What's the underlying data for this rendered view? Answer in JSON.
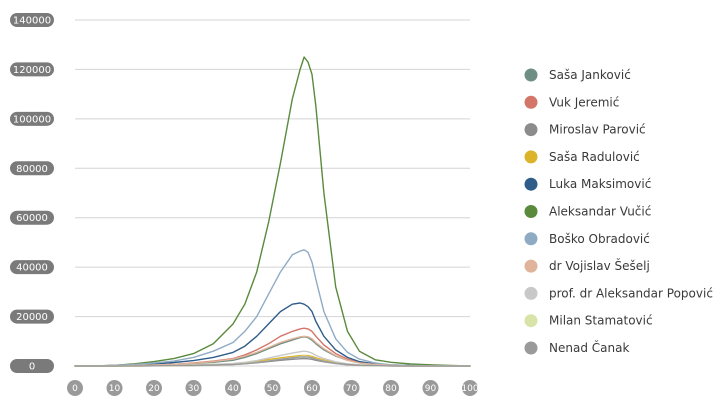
{
  "chart_data": {
    "type": "line",
    "title": "",
    "xlabel": "",
    "ylabel": "",
    "xlim": [
      0,
      100
    ],
    "ylim": [
      0,
      140000
    ],
    "x_ticks": [
      "0",
      "10",
      "20",
      "30",
      "40",
      "50",
      "60",
      "70",
      "80",
      "90",
      "100"
    ],
    "y_ticks": [
      "0",
      "20000",
      "40000",
      "60000",
      "80000",
      "100000",
      "120000",
      "140000"
    ],
    "grid": true,
    "legend_position": "right",
    "x": [
      0,
      5,
      10,
      15,
      20,
      25,
      30,
      35,
      40,
      43,
      46,
      49,
      52,
      55,
      57,
      58,
      59,
      60,
      61,
      63,
      66,
      69,
      72,
      76,
      80,
      85,
      90,
      95,
      100
    ],
    "series": [
      {
        "name": "Saša Janković",
        "color": "#6f8f84",
        "values": [
          0,
          0,
          100,
          200,
          400,
          700,
          1000,
          1500,
          2300,
          3500,
          5000,
          7000,
          9000,
          10500,
          11500,
          11800,
          11500,
          10500,
          9000,
          6500,
          4000,
          2300,
          1300,
          600,
          300,
          200,
          100,
          0,
          0
        ]
      },
      {
        "name": "Vuk Jeremić",
        "color": "#d4756a",
        "values": [
          0,
          0,
          100,
          200,
          400,
          700,
          1200,
          2000,
          3000,
          4500,
          6500,
          9000,
          12000,
          14000,
          15000,
          15300,
          15000,
          14000,
          12000,
          8500,
          5000,
          2800,
          1500,
          700,
          300,
          200,
          100,
          0,
          0
        ]
      },
      {
        "name": "Miroslav Parović",
        "color": "#8c8c8c",
        "values": [
          0,
          0,
          0,
          50,
          100,
          150,
          250,
          400,
          600,
          900,
          1300,
          1800,
          2300,
          2700,
          2900,
          3000,
          2900,
          2700,
          2300,
          1700,
          1000,
          500,
          300,
          150,
          50,
          0,
          0,
          0,
          0
        ]
      },
      {
        "name": "Saša Radulović",
        "color": "#dcb42c",
        "values": [
          0,
          0,
          0,
          50,
          100,
          200,
          350,
          600,
          900,
          1300,
          1900,
          2600,
          3300,
          3900,
          4200,
          4300,
          4200,
          3900,
          3300,
          2400,
          1400,
          800,
          400,
          200,
          100,
          50,
          0,
          0,
          0
        ]
      },
      {
        "name": "Luka Maksimović",
        "color": "#2f5d8a",
        "values": [
          0,
          0,
          200,
          400,
          800,
          1400,
          2200,
          3500,
          5500,
          8000,
          12000,
          17000,
          22000,
          25000,
          25500,
          25000,
          24000,
          22000,
          18000,
          12000,
          6500,
          3500,
          1800,
          800,
          400,
          200,
          100,
          0,
          0
        ]
      },
      {
        "name": "Aleksandar Vučić",
        "color": "#5a8a3c",
        "values": [
          0,
          0,
          300,
          900,
          1800,
          3000,
          5000,
          9000,
          17000,
          25000,
          38000,
          58000,
          82000,
          108000,
          120000,
          125000,
          123000,
          118000,
          105000,
          70000,
          32000,
          14000,
          6000,
          2500,
          1500,
          800,
          500,
          200,
          0
        ]
      },
      {
        "name": "Boško Obradović",
        "color": "#8fabc4",
        "values": [
          0,
          0,
          300,
          600,
          1200,
          2000,
          3500,
          6000,
          9500,
          14000,
          20000,
          29000,
          38000,
          45000,
          46500,
          47000,
          46000,
          42000,
          35000,
          22000,
          11000,
          5500,
          2800,
          1200,
          500,
          300,
          100,
          0,
          0
        ]
      },
      {
        "name": "dr Vojislav Šešelj",
        "color": "#e0b49a",
        "values": [
          0,
          0,
          100,
          200,
          400,
          700,
          1100,
          1800,
          2800,
          4000,
          5500,
          7500,
          9500,
          11000,
          11800,
          12000,
          11800,
          11000,
          9500,
          7000,
          4200,
          2300,
          1200,
          600,
          300,
          100,
          0,
          0,
          0
        ]
      },
      {
        "name": "prof. dr Aleksandar Popović",
        "color": "#c8c8c8",
        "values": [
          0,
          0,
          0,
          50,
          100,
          200,
          350,
          600,
          1000,
          1500,
          2200,
          3200,
          4300,
          5200,
          5800,
          6000,
          5800,
          5200,
          4300,
          3000,
          1700,
          900,
          500,
          200,
          100,
          0,
          0,
          0,
          0
        ]
      },
      {
        "name": "Milan Stamatović",
        "color": "#d8e3a8",
        "values": [
          0,
          0,
          0,
          50,
          100,
          150,
          250,
          400,
          700,
          1000,
          1500,
          2100,
          2800,
          3400,
          3800,
          4000,
          3800,
          3400,
          2800,
          2000,
          1100,
          600,
          300,
          150,
          50,
          0,
          0,
          0,
          0
        ]
      },
      {
        "name": "Nenad Čanak",
        "color": "#9a9a9a",
        "values": [
          0,
          0,
          0,
          50,
          100,
          150,
          250,
          400,
          650,
          950,
          1400,
          2000,
          2700,
          3300,
          3600,
          3700,
          3600,
          3300,
          2700,
          1900,
          1100,
          600,
          300,
          150,
          50,
          0,
          0,
          0,
          0
        ]
      }
    ]
  }
}
